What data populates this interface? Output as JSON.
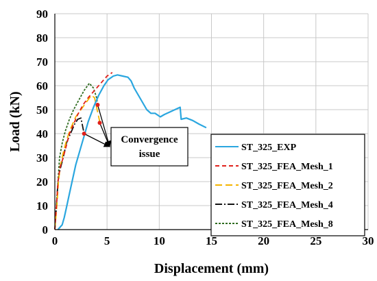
{
  "chart_data": {
    "type": "line",
    "xlabel": "Displacement (mm)",
    "ylabel": "Load (kN)",
    "xlim": [
      0,
      30
    ],
    "ylim": [
      0,
      90
    ],
    "xticks": [
      0,
      5,
      10,
      15,
      20,
      25,
      30
    ],
    "yticks": [
      0,
      10,
      20,
      30,
      40,
      50,
      60,
      70,
      80,
      90
    ],
    "grid": true,
    "legend": "right",
    "annotation": {
      "text_lines": [
        "Convergence",
        "issue"
      ],
      "arrow_targets": [
        [
          2.8,
          40
        ],
        [
          4.3,
          44.5
        ],
        [
          4.1,
          52
        ]
      ]
    },
    "series": [
      {
        "name": "ST_325_EXP",
        "color": "#2aa6df",
        "dash": "solid",
        "marker": false,
        "points": [
          [
            0.3,
            0
          ],
          [
            0.5,
            1
          ],
          [
            0.7,
            2
          ],
          [
            0.9,
            5
          ],
          [
            1.1,
            9
          ],
          [
            1.4,
            15
          ],
          [
            1.7,
            21
          ],
          [
            2.0,
            27
          ],
          [
            2.4,
            33
          ],
          [
            2.8,
            39
          ],
          [
            3.2,
            45
          ],
          [
            3.7,
            51
          ],
          [
            4.2,
            56
          ],
          [
            4.7,
            60
          ],
          [
            5.1,
            62.5
          ],
          [
            5.6,
            64
          ],
          [
            6.0,
            64.5
          ],
          [
            6.5,
            64
          ],
          [
            7.0,
            63.5
          ],
          [
            7.3,
            62
          ],
          [
            7.6,
            59
          ],
          [
            8.0,
            56
          ],
          [
            8.4,
            53
          ],
          [
            8.8,
            50
          ],
          [
            9.2,
            48.5
          ],
          [
            9.6,
            48.5
          ],
          [
            10.1,
            47
          ],
          [
            10.5,
            48
          ],
          [
            11.0,
            49
          ],
          [
            11.5,
            50
          ],
          [
            12.0,
            51
          ],
          [
            12.1,
            46
          ],
          [
            12.6,
            46.5
          ],
          [
            13.2,
            45.5
          ],
          [
            13.8,
            44
          ],
          [
            14.5,
            42.5
          ]
        ]
      },
      {
        "name": "ST_325_FEA_Mesh_1",
        "color": "#e0201b",
        "dash": "6,4",
        "marker": true,
        "points": [
          [
            0,
            0
          ],
          [
            0.15,
            10
          ],
          [
            0.3,
            20
          ],
          [
            0.5,
            26
          ],
          [
            0.8,
            30
          ],
          [
            1.1,
            35
          ],
          [
            1.4,
            40
          ],
          [
            1.8,
            44
          ],
          [
            2.2,
            48
          ],
          [
            2.7,
            52
          ],
          [
            3.2,
            55
          ],
          [
            3.8,
            58
          ],
          [
            4.4,
            61
          ],
          [
            5.0,
            64
          ],
          [
            5.5,
            65.5
          ]
        ]
      },
      {
        "name": "ST_325_FEA_Mesh_2",
        "color": "#f4b400",
        "dash": "10,5",
        "marker": false,
        "points": [
          [
            0,
            0
          ],
          [
            0.2,
            10
          ],
          [
            0.35,
            20
          ],
          [
            0.5,
            26
          ],
          [
            0.8,
            32
          ],
          [
            1.1,
            37
          ],
          [
            1.5,
            42
          ],
          [
            2.0,
            47
          ],
          [
            2.5,
            50
          ],
          [
            3.0,
            53
          ],
          [
            3.5,
            56
          ],
          [
            3.8,
            55
          ],
          [
            4.0,
            51
          ],
          [
            4.3,
            45
          ]
        ]
      },
      {
        "name": "ST_325_FEA_Mesh_4",
        "color": "#111111",
        "dash": "10,3,2,3",
        "marker": false,
        "points": [
          [
            0,
            0
          ],
          [
            0.15,
            10
          ],
          [
            0.3,
            20
          ],
          [
            0.5,
            25
          ],
          [
            0.8,
            30
          ],
          [
            1.1,
            36
          ],
          [
            1.5,
            40
          ],
          [
            1.9,
            44
          ],
          [
            2.2,
            46
          ],
          [
            2.5,
            46.5
          ],
          [
            2.8,
            40
          ]
        ]
      },
      {
        "name": "ST_325_FEA_Mesh_8",
        "color": "#2e6b1f",
        "dash": "3,2",
        "marker": false,
        "points": [
          [
            0,
            0
          ],
          [
            0.15,
            10
          ],
          [
            0.3,
            20
          ],
          [
            0.45,
            30
          ],
          [
            0.7,
            36
          ],
          [
            1.0,
            41
          ],
          [
            1.4,
            46
          ],
          [
            1.8,
            50
          ],
          [
            2.3,
            54
          ],
          [
            2.8,
            58
          ],
          [
            3.3,
            61
          ],
          [
            3.7,
            59
          ],
          [
            4.0,
            55
          ],
          [
            4.1,
            52
          ]
        ]
      }
    ]
  }
}
